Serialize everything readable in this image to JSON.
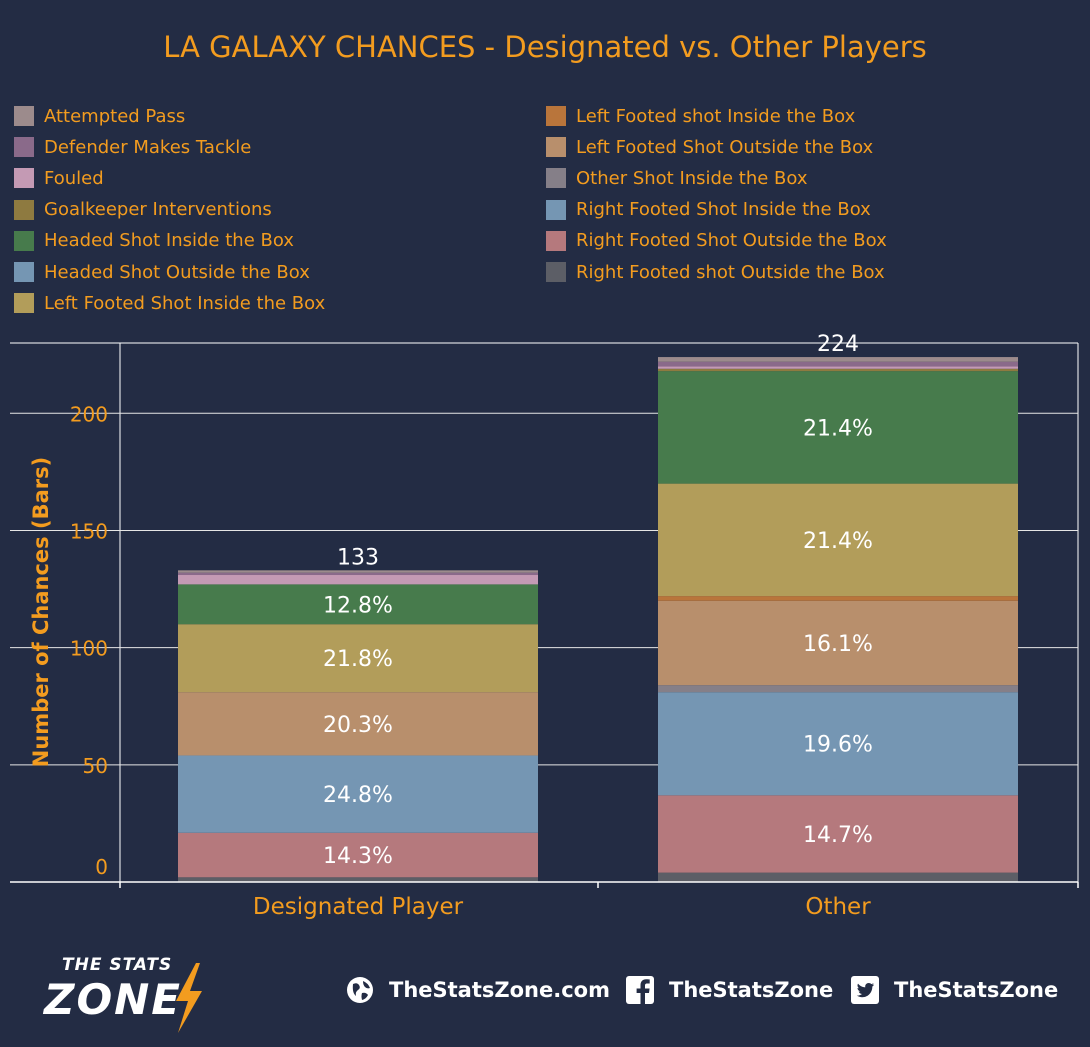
{
  "title": "LA GALAXY CHANCES - Designated vs. Other Players",
  "colors": {
    "accent": "#f39c1f",
    "background": "#232c44"
  },
  "legend": [
    {
      "label": "Attempted Pass",
      "color": "#9c8b8c"
    },
    {
      "label": "Defender Makes Tackle",
      "color": "#8a6a8a"
    },
    {
      "label": "Fouled",
      "color": "#c49ab4"
    },
    {
      "label": "Goalkeeper Interventions",
      "color": "#8e7a40"
    },
    {
      "label": "Headed Shot Inside the Box",
      "color": "#477b4c"
    },
    {
      "label": "Headed Shot Outside the Box",
      "color": "#7596b3"
    },
    {
      "label": "Left Footed Shot Inside the Box",
      "color": "#b29d5a"
    },
    {
      "label": "Left Footed shot Inside the Box",
      "color": "#b9753b"
    },
    {
      "label": "Left Footed Shot Outside the Box",
      "color": "#b88f6c"
    },
    {
      "label": "Other Shot Inside the Box",
      "color": "#857f88"
    },
    {
      "label": "Right Footed Shot Inside the Box",
      "color": "#7596b3"
    },
    {
      "label": "Right Footed Shot Outside the Box",
      "color": "#b5797d"
    },
    {
      "label": "Right Footed shot Outside the Box",
      "color": "#5c5e66"
    }
  ],
  "chart_data": {
    "type": "bar",
    "stacked": true,
    "categories": [
      "Designated Player",
      "Other"
    ],
    "ylabel": "Number of Chances (Bars)",
    "ylim": [
      0,
      230
    ],
    "yticks": [
      0,
      50,
      100,
      150,
      200
    ],
    "grid": true,
    "totals": [
      133,
      224
    ],
    "bar_total_labels": [
      "133",
      "224"
    ],
    "series": [
      {
        "name": "Right Footed shot Outside the Box",
        "values": [
          2,
          4
        ]
      },
      {
        "name": "Right Footed Shot Outside the Box",
        "values": [
          19,
          33
        ],
        "labels": [
          "14.3%",
          "14.7%"
        ]
      },
      {
        "name": "Right Footed Shot Inside the Box",
        "values": [
          33,
          44
        ],
        "labels": [
          "24.8%",
          "19.6%"
        ]
      },
      {
        "name": "Other Shot Inside the Box",
        "values": [
          0,
          3
        ]
      },
      {
        "name": "Left Footed Shot Outside the Box",
        "values": [
          27,
          36
        ],
        "labels": [
          "20.3%",
          "16.1%"
        ]
      },
      {
        "name": "Left Footed shot Inside the Box",
        "values": [
          0,
          2
        ]
      },
      {
        "name": "Left Footed Shot Inside the Box",
        "values": [
          29,
          48
        ],
        "labels": [
          "21.8%",
          "21.4%"
        ]
      },
      {
        "name": "Headed Shot Outside the Box",
        "values": [
          0,
          0
        ]
      },
      {
        "name": "Headed Shot Inside the Box",
        "values": [
          17,
          48
        ],
        "labels": [
          "12.8%",
          "21.4%"
        ]
      },
      {
        "name": "Goalkeeper Interventions",
        "values": [
          0,
          1
        ]
      },
      {
        "name": "Fouled",
        "values": [
          4,
          1
        ]
      },
      {
        "name": "Defender Makes Tackle",
        "values": [
          1,
          2
        ]
      },
      {
        "name": "Attempted Pass",
        "values": [
          1,
          2
        ]
      }
    ]
  },
  "footer": {
    "logo_top": "THE STATS",
    "logo_main": "ZONE",
    "website": "TheStatsZone.com",
    "facebook": "TheStatsZone",
    "twitter": "TheStatsZone"
  }
}
